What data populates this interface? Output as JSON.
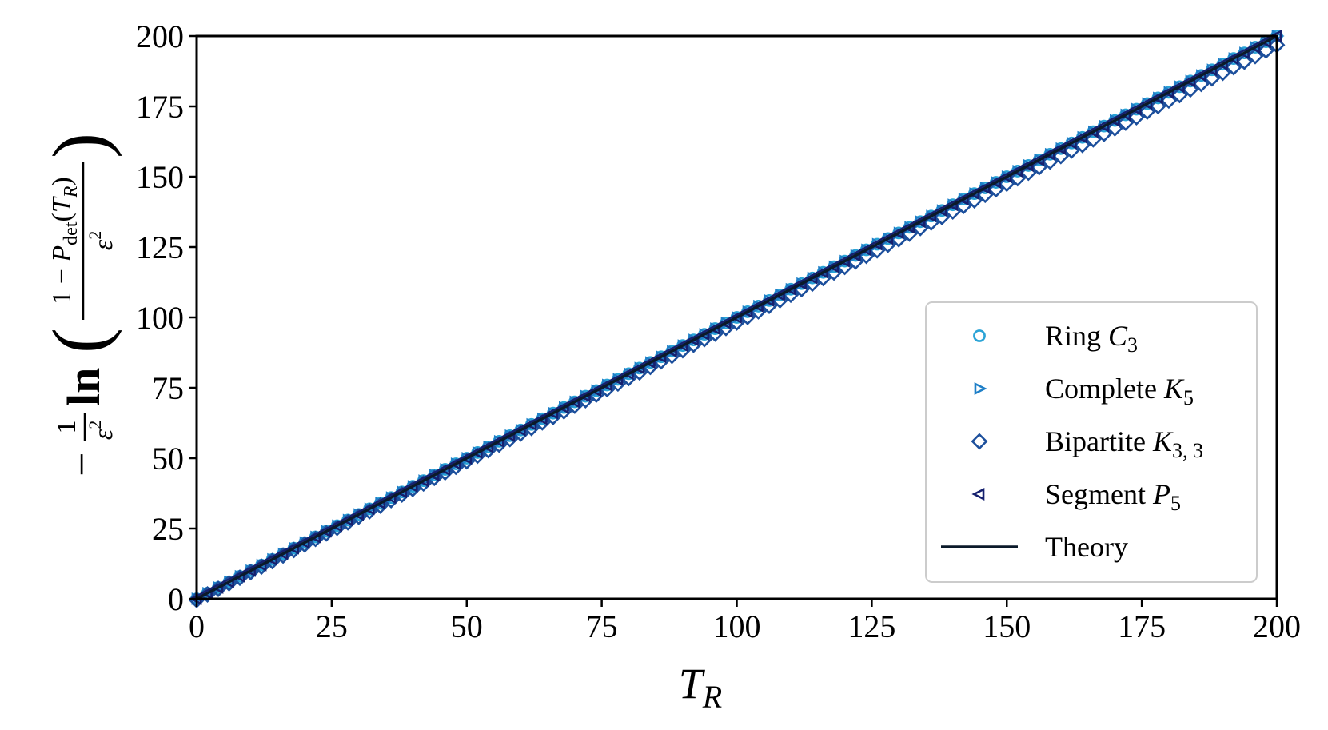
{
  "chart_data": {
    "type": "scatter",
    "title": "",
    "xlabel": {
      "base": "T",
      "sub": "R"
    },
    "ylabel": {
      "prefix": "−",
      "frac_num": "1",
      "frac_den_base": "ε",
      "frac_den_sup": "2",
      "func": "ln",
      "inner_num_lead": "1 − ",
      "inner_num_P": "P",
      "inner_num_P_sub": "det",
      "inner_num_paren_open": "(",
      "inner_num_T": "T",
      "inner_num_T_sub": "R",
      "inner_num_paren_close": ")",
      "inner_den_base": "ε",
      "inner_den_sup": "2"
    },
    "xlim": [
      0,
      200
    ],
    "ylim": [
      0,
      200
    ],
    "xticks": [
      0,
      25,
      50,
      75,
      100,
      125,
      150,
      175,
      200
    ],
    "yticks": [
      0,
      25,
      50,
      75,
      100,
      125,
      150,
      175,
      200
    ],
    "grid": false,
    "legend_position": "lower-right",
    "x_start": 0,
    "x_end": 200,
    "x_step": 2,
    "series": [
      {
        "name": "Ring C3",
        "label_text": "Ring ",
        "label_math_base": "C",
        "label_math_sub": "3",
        "marker": "circle",
        "color": "#2aa3d6",
        "slope": 1.0,
        "offset": 0.0
      },
      {
        "name": "Complete K5",
        "label_text": "Complete ",
        "label_math_base": "K",
        "label_math_sub": "5",
        "marker": "triangle-right",
        "color": "#1f7fc7",
        "slope": 1.0,
        "offset": 0.0
      },
      {
        "name": "Bipartite K3,3",
        "label_text": "Bipartite ",
        "label_math_base": "K",
        "label_math_sub": "3, 3",
        "marker": "diamond",
        "color": "#1c4f9c",
        "slope": 0.986,
        "offset": -0.4
      },
      {
        "name": "Segment P5",
        "label_text": "Segment ",
        "label_math_base": "P",
        "label_math_sub": "5",
        "marker": "triangle-left",
        "color": "#15206e",
        "slope": 1.0,
        "offset": 0.0
      }
    ],
    "theory": {
      "name": "Theory",
      "color": "#0b1a2a",
      "x": [
        0,
        200
      ],
      "y": [
        0,
        200
      ]
    }
  }
}
